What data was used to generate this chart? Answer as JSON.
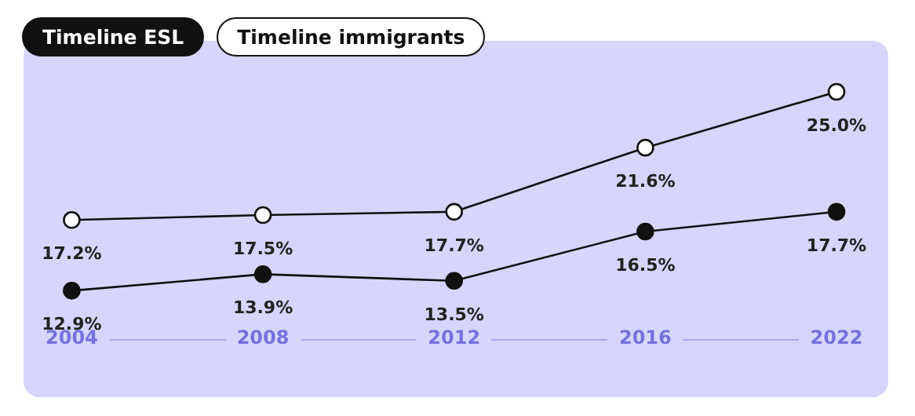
{
  "chart_data": {
    "type": "line",
    "categories": [
      "2004",
      "2008",
      "2012",
      "2016",
      "2022"
    ],
    "series": [
      {
        "name": "Timeline ESL",
        "color": "#111111",
        "values": [
          12.9,
          13.9,
          13.5,
          16.5,
          17.7
        ],
        "value_labels": [
          "12.9%",
          "13.9%",
          "13.5%",
          "16.5%",
          "17.7%"
        ]
      },
      {
        "name": "Timeline immigrants",
        "color": "#ffffff",
        "values": [
          17.2,
          17.5,
          17.7,
          21.6,
          25.0
        ],
        "value_labels": [
          "17.2%",
          "17.5%",
          "17.7%",
          "21.6%",
          "25.0%"
        ]
      }
    ],
    "legend": "top left",
    "marker": "circle",
    "line_style": "solid",
    "grid": false,
    "tick_labels": "x"
  }
}
